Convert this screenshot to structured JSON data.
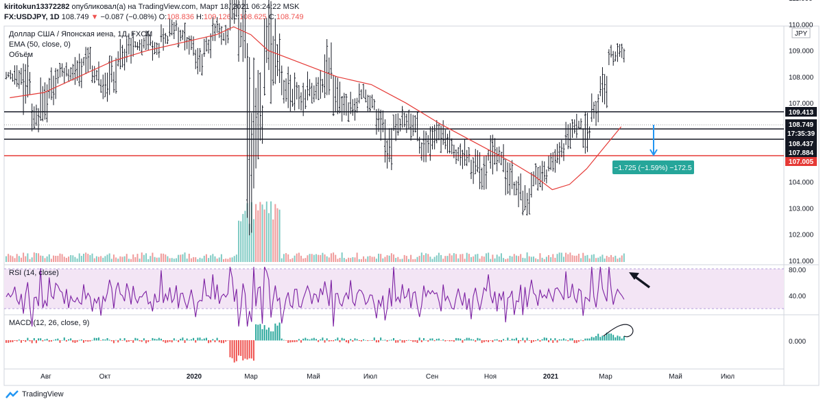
{
  "header": {
    "author": "kiritokun13372282",
    "published": "опубликовал(а) на TradingView.com,",
    "datetime": "Март 18, 2021 06:24:22 MSK",
    "symbol": "FX:USDJPY, 1D",
    "last": "108.749",
    "change_arrow": "▼",
    "change": "−0.087 (−0.08%)",
    "o_label": "O:",
    "o_value": "108.836",
    "h_label": "H:",
    "h_value": "109.126",
    "l_label": "L:",
    "l_value": "108.625",
    "c_label": "C:",
    "c_value": "108.749"
  },
  "legend": {
    "title": "Доллар США / Японская иена, 1Д, FXCM",
    "ema": "EMA (50, close, 0)",
    "volume": "Объём",
    "rsi": "RSI (14, close)",
    "macd": "MACD (12, 26, close, 9)"
  },
  "currency_badge": "JPY",
  "brand": "TradingView",
  "measure_label": "−1.725 (−1.59%) −172.5",
  "price_tags": {
    "t1": "109.413",
    "t2": "108.749",
    "t3": "17:35:39",
    "t4": "108.437",
    "t5": "107.884",
    "t6": "107.005"
  },
  "colors": {
    "bars": "#131722",
    "ema": "#e53935",
    "vol_up": "#80cbc4",
    "vol_down": "#ef9a9a",
    "rsi": "#7b1fa2",
    "rsi_band": "#f3e5f5",
    "hist_up": "#26a69a",
    "hist_down": "#ef5350",
    "measure": "#26a69a",
    "arrow": "#2196f3"
  },
  "chart_data": {
    "type": "ohlc",
    "title": "Доллар США / Японская иена, 1Д, FXCM",
    "x_ticks": [
      "Авг",
      "Окт",
      "2020",
      "Мар",
      "Май",
      "Июл",
      "Сен",
      "Ноя",
      "2021",
      "Мар",
      "Май",
      "Июл"
    ],
    "y_ticks": [
      "113.000",
      "112.000",
      "111.000",
      "110.000",
      "109.000",
      "108.000",
      "107.000",
      "106.000",
      "105.000",
      "104.000",
      "103.000",
      "102.000",
      "101.000"
    ],
    "ylim": [
      101,
      114
    ],
    "price_path": [
      [
        107.8,
        108.3
      ],
      [
        107.5,
        108.7
      ],
      [
        106.5,
        108.9
      ],
      [
        105.8,
        107.2
      ],
      [
        106.2,
        108.0
      ],
      [
        106.9,
        108.4
      ],
      [
        107.5,
        108.8
      ],
      [
        107.8,
        108.6
      ],
      [
        107.4,
        108.9
      ],
      [
        108.0,
        109.2
      ],
      [
        107.5,
        108.7
      ],
      [
        107.0,
        108.2
      ],
      [
        107.2,
        108.8
      ],
      [
        108.1,
        109.5
      ],
      [
        108.5,
        109.7
      ],
      [
        108.8,
        109.6
      ],
      [
        109.0,
        109.8
      ],
      [
        108.6,
        109.6
      ],
      [
        108.9,
        110.0
      ],
      [
        109.4,
        110.3
      ],
      [
        109.0,
        110.1
      ],
      [
        108.8,
        109.6
      ],
      [
        108.0,
        109.3
      ],
      [
        108.5,
        110.0
      ],
      [
        109.3,
        110.4
      ],
      [
        109.0,
        110.1
      ],
      [
        109.5,
        112.2
      ],
      [
        107.8,
        111.5
      ],
      [
        101.2,
        109.5
      ],
      [
        104.5,
        108.5
      ],
      [
        106.8,
        111.7
      ],
      [
        107.5,
        110.2
      ],
      [
        106.8,
        108.5
      ],
      [
        106.5,
        108.2
      ],
      [
        106.4,
        107.8
      ],
      [
        106.7,
        108.2
      ],
      [
        107.1,
        108.4
      ],
      [
        107.0,
        109.5
      ],
      [
        106.5,
        108.2
      ],
      [
        106.2,
        107.4
      ],
      [
        106.3,
        107.5
      ],
      [
        106.8,
        107.9
      ],
      [
        106.6,
        107.4
      ],
      [
        105.5,
        107.0
      ],
      [
        104.2,
        106.5
      ],
      [
        105.4,
        106.8
      ],
      [
        105.8,
        106.9
      ],
      [
        105.5,
        106.7
      ],
      [
        104.5,
        106.0
      ],
      [
        104.8,
        106.2
      ],
      [
        105.0,
        106.5
      ],
      [
        104.8,
        106.0
      ],
      [
        104.5,
        105.5
      ],
      [
        104.4,
        105.7
      ],
      [
        103.8,
        105.3
      ],
      [
        103.2,
        105.2
      ],
      [
        104.2,
        105.8
      ],
      [
        104.2,
        105.5
      ],
      [
        103.4,
        104.9
      ],
      [
        103.0,
        104.5
      ],
      [
        102.6,
        103.9
      ],
      [
        103.3,
        104.8
      ],
      [
        103.6,
        104.8
      ],
      [
        104.0,
        105.4
      ],
      [
        104.5,
        105.9
      ],
      [
        105.2,
        106.4
      ],
      [
        105.6,
        106.8
      ],
      [
        105.0,
        106.7
      ],
      [
        106.0,
        107.4
      ],
      [
        106.8,
        108.7
      ],
      [
        108.3,
        109.4
      ],
      [
        108.5,
        109.4
      ]
    ],
    "ema_path": [
      [
        0,
        107.2
      ],
      [
        4,
        107.4
      ],
      [
        8,
        108.0
      ],
      [
        12,
        108.6
      ],
      [
        16,
        109.0
      ],
      [
        20,
        109.3
      ],
      [
        24,
        109.6
      ],
      [
        26,
        109.9
      ],
      [
        28,
        109.6
      ],
      [
        30,
        109.0
      ],
      [
        34,
        108.5
      ],
      [
        38,
        108.0
      ],
      [
        42,
        107.7
      ],
      [
        46,
        107.0
      ],
      [
        50,
        106.2
      ],
      [
        54,
        105.5
      ],
      [
        58,
        104.8
      ],
      [
        61,
        104.2
      ],
      [
        63,
        103.7
      ],
      [
        65,
        103.9
      ],
      [
        67,
        104.5
      ],
      [
        69,
        105.3
      ],
      [
        71,
        106.1
      ]
    ],
    "rsi": {
      "ticks": [
        "80.00",
        "40.00"
      ],
      "band": [
        30,
        70
      ]
    },
    "macd": {
      "ticks": [
        "0.000"
      ]
    }
  }
}
